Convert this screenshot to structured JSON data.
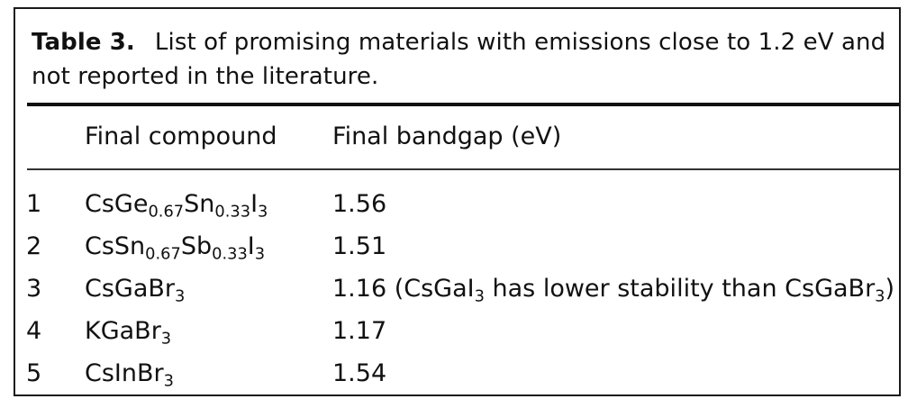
{
  "caption": {
    "label": "Table 3.",
    "text": "List of promising materials with emissions close to 1.2 eV and not reported in the literature."
  },
  "table": {
    "headers": {
      "index": "",
      "compound": "Final compound",
      "bandgap": "Final bandgap (eV)"
    },
    "rows": [
      {
        "index": "1",
        "compound": [
          "CsGe",
          "0.67",
          "Sn",
          "0.33",
          "I",
          "3"
        ],
        "bandgap": [
          "1.56"
        ]
      },
      {
        "index": "2",
        "compound": [
          "CsSn",
          "0.67",
          "Sb",
          "0.33",
          "I",
          "3"
        ],
        "bandgap": [
          "1.51"
        ]
      },
      {
        "index": "3",
        "compound": [
          "CsGaBr",
          "3"
        ],
        "bandgap": [
          "1.16 (CsGaI",
          "3",
          " has lower stability than CsGaBr",
          "3",
          ")"
        ]
      },
      {
        "index": "4",
        "compound": [
          "KGaBr",
          "3"
        ],
        "bandgap": [
          "1.17"
        ]
      },
      {
        "index": "5",
        "compound": [
          "CsInBr",
          "3"
        ],
        "bandgap": [
          "1.54"
        ]
      }
    ]
  }
}
